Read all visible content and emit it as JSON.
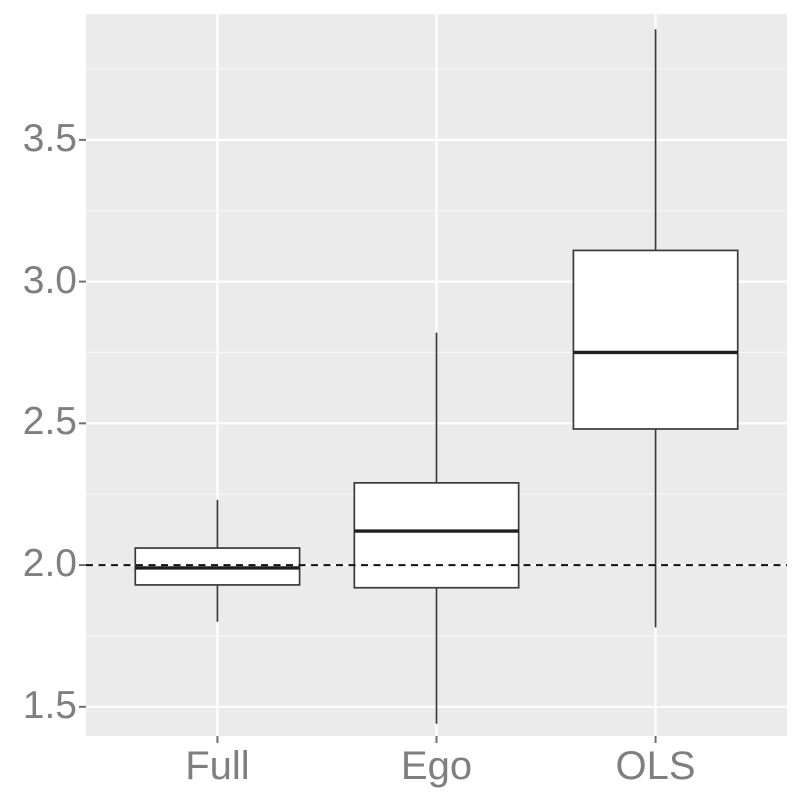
{
  "figure": {
    "background_color": "#ffffff",
    "panel_background_color": "#ebebeb",
    "grid_major_color": "#ffffff",
    "grid_minor_color": "#ffffff",
    "axis_text_color": "#7f7f7f",
    "tick_mark_color": "#6f6f6f",
    "box_fill_color": "#ffffff",
    "box_stroke_color": "#3a3a3a",
    "median_color": "#1f1f1f",
    "reference_line_color": "#111111"
  },
  "chart_data": {
    "type": "boxplot",
    "title": "",
    "xlabel": "",
    "ylabel": "",
    "categories": [
      "Full",
      "Ego",
      "OLS"
    ],
    "series": [
      {
        "name": "Full",
        "whisker_low": 1.8,
        "q1": 1.93,
        "median": 1.99,
        "q3": 2.06,
        "whisker_high": 2.23
      },
      {
        "name": "Ego",
        "whisker_low": 1.44,
        "q1": 1.92,
        "median": 2.12,
        "q3": 2.29,
        "whisker_high": 2.82
      },
      {
        "name": "OLS",
        "whisker_low": 1.78,
        "q1": 2.48,
        "median": 2.75,
        "q3": 3.11,
        "whisker_high": 3.89
      }
    ],
    "reference_line": {
      "y": 2.0,
      "style": "dashed"
    },
    "y_axis": {
      "tick_values": [
        1.5,
        2.0,
        2.5,
        3.0,
        3.5
      ],
      "tick_labels": [
        "1.5",
        "2.0",
        "2.5",
        "3.0",
        "3.5"
      ],
      "minor_tick_values": [
        1.75,
        2.25,
        2.75,
        3.25,
        3.75
      ],
      "ylim": [
        1.397,
        3.944
      ]
    },
    "x_axis": {
      "labels": [
        "Full",
        "Ego",
        "OLS"
      ]
    },
    "grid": true,
    "legend": null
  }
}
